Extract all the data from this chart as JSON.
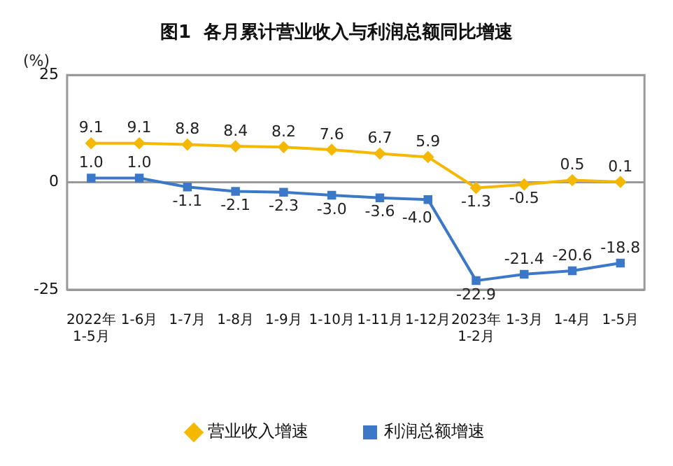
{
  "chart_data": {
    "type": "line",
    "title": "图1  各月累计营业收入与利润总额同比增速",
    "ylabel": "(%)",
    "categories": [
      "2022年\n1-5月",
      "1-6月",
      "1-7月",
      "1-8月",
      "1-9月",
      "1-10月",
      "1-11月",
      "1-12月",
      "2023年\n1-2月",
      "1-3月",
      "1-4月",
      "1-5月"
    ],
    "series": [
      {
        "name": "营业收入增速",
        "color": "#f5b800",
        "marker": "diamond",
        "values": [
          9.1,
          9.1,
          8.8,
          8.4,
          8.2,
          7.6,
          6.7,
          5.9,
          -1.3,
          -0.5,
          0.5,
          0.1
        ],
        "value_labels": [
          "9.1",
          "9.1",
          "8.8",
          "8.4",
          "8.2",
          "7.6",
          "6.7",
          "5.9",
          "-1.3",
          "-0.5",
          "0.5",
          "0.1"
        ]
      },
      {
        "name": "利润总额增速",
        "color": "#3c78c8",
        "marker": "square",
        "values": [
          1.0,
          1.0,
          -1.1,
          -2.1,
          -2.3,
          -3.0,
          -3.6,
          -4.0,
          -22.9,
          -21.4,
          -20.6,
          -18.8
        ],
        "value_labels": [
          "1.0",
          "1.0",
          "-1.1",
          "-2.1",
          "-2.3",
          "-3.0",
          "-3.6",
          "-4.0",
          "-22.9",
          "-21.4",
          "-20.6",
          "-18.8"
        ]
      }
    ],
    "ylim": [
      -25,
      25
    ],
    "yticks": [
      -25,
      0,
      25
    ],
    "grid": "y",
    "legend": "bottom"
  }
}
